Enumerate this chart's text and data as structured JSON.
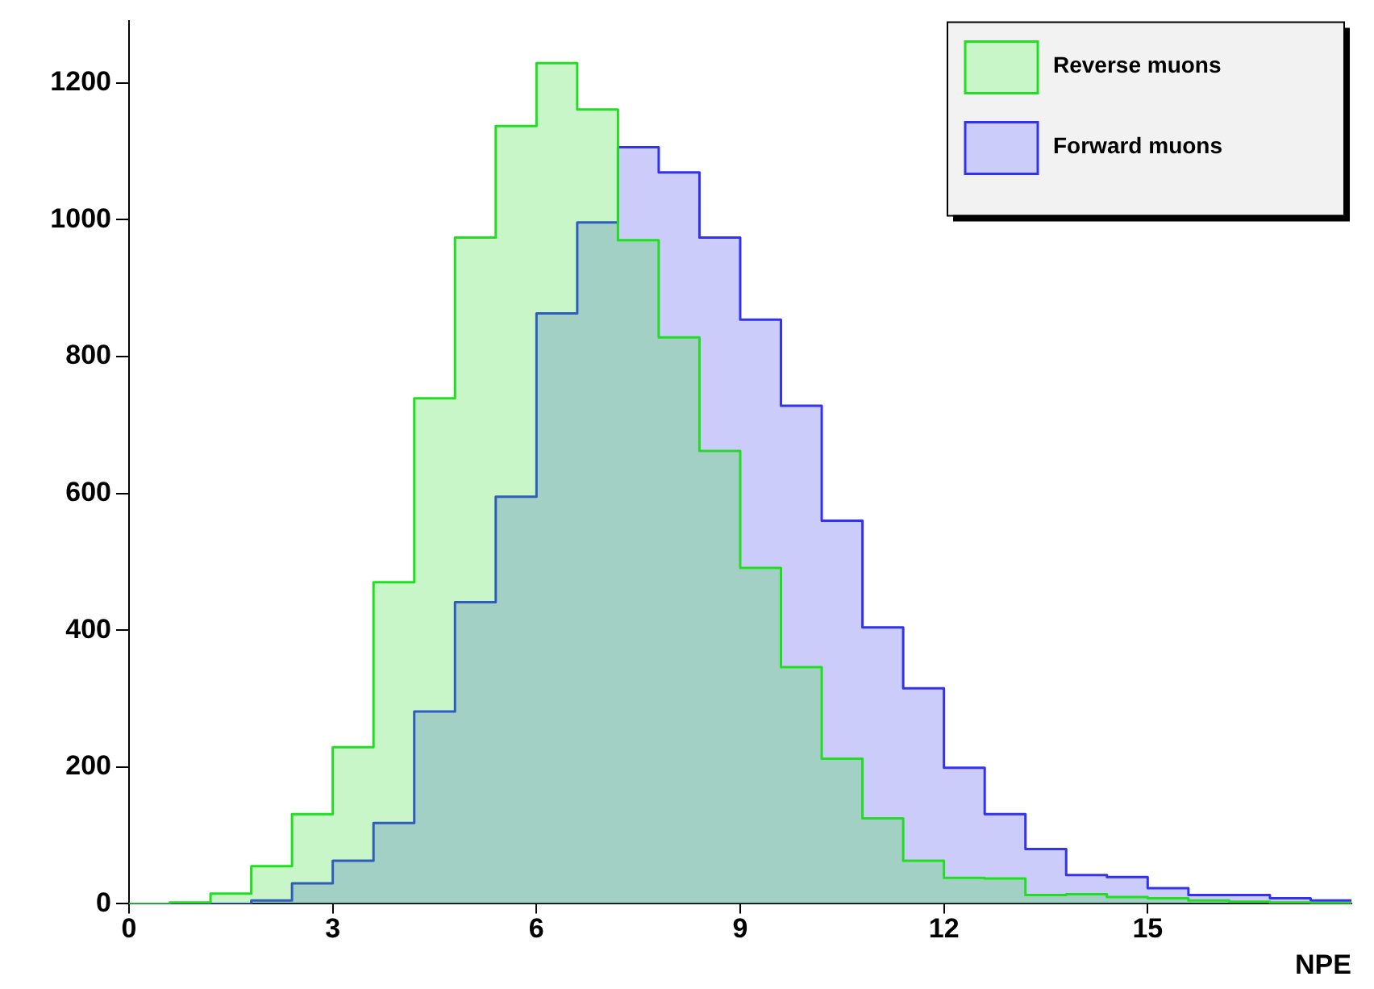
{
  "chart_data": {
    "type": "histogram",
    "xlabel": "NPE",
    "bins": [
      0,
      0.6,
      1.2,
      1.8,
      2.4,
      3,
      3.6,
      4.2,
      4.8,
      5.4,
      6,
      6.6,
      7.2,
      7.8,
      8.4,
      9,
      9.6,
      10.2,
      10.8,
      11.4,
      12,
      12.6,
      13.2,
      13.8,
      14.4,
      15,
      15.6,
      16.2,
      16.8,
      17.4,
      18
    ],
    "series": [
      {
        "name": "Reverse muons",
        "color": "#22dd22",
        "values": [
          0,
          2,
          15,
          55,
          131,
          229,
          470,
          739,
          974,
          1137,
          1229,
          1161,
          970,
          828,
          662,
          491,
          346,
          212,
          125,
          63,
          38,
          37,
          13,
          14,
          10,
          8,
          5,
          3,
          2,
          1
        ]
      },
      {
        "name": "Forward muons",
        "color": "#3333ee",
        "values": [
          0,
          0,
          0,
          5,
          30,
          63,
          118,
          281,
          441,
          595,
          863,
          996,
          1106,
          1069,
          974,
          854,
          728,
          560,
          404,
          315,
          199,
          131,
          80,
          42,
          39,
          23,
          13,
          13,
          8,
          5
        ]
      }
    ],
    "xlim": [
      0,
      18
    ],
    "xticks": [
      0,
      3,
      6,
      9,
      12,
      15
    ],
    "ylim": [
      0,
      1290
    ],
    "yticks": [
      0,
      200,
      400,
      600,
      800,
      1000,
      1200
    ],
    "grid": false,
    "legend": "top right"
  }
}
